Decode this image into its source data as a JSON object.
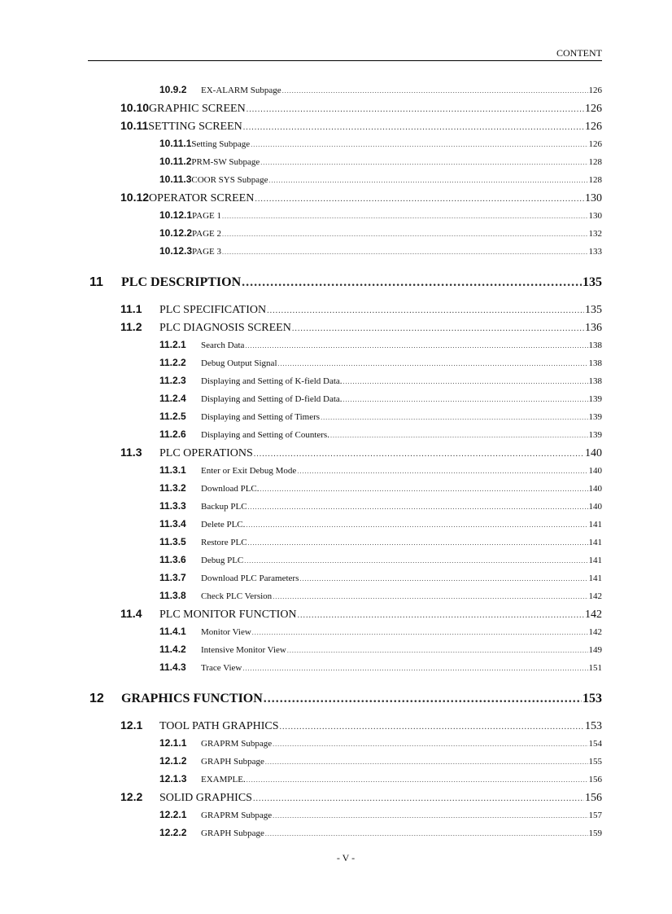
{
  "header": {
    "title": "CONTENT"
  },
  "footer": {
    "page_label": "- V -"
  },
  "entries": [
    {
      "level": 3,
      "number": "10.9.2",
      "title": "EX-ALARM Subpage",
      "page": "126"
    },
    {
      "level": 2,
      "number": "10.10",
      "title": "GRAPHIC SCREEN",
      "page": "126",
      "tight": true
    },
    {
      "level": 2,
      "number": "10.11",
      "title": "SETTING SCREEN",
      "page": "126",
      "tight": true
    },
    {
      "level": 3,
      "number": "10.11.1",
      "title": "Setting Subpage",
      "page": "126",
      "tight": true
    },
    {
      "level": 3,
      "number": "10.11.2",
      "title": "PRM-SW Subpage",
      "page": "128",
      "tight": true
    },
    {
      "level": 3,
      "number": "10.11.3",
      "title": "COOR SYS Subpage",
      "page": "128",
      "tight": true
    },
    {
      "level": 2,
      "number": "10.12",
      "title": "OPERATOR SCREEN",
      "page": "130",
      "tight": true
    },
    {
      "level": 3,
      "number": "10.12.1",
      "title": "PAGE 1",
      "page": "130",
      "tight": true
    },
    {
      "level": 3,
      "number": "10.12.2",
      "title": "PAGE 2",
      "page": "132",
      "tight": true
    },
    {
      "level": 3,
      "number": "10.12.3",
      "title": "PAGE 3",
      "page": "133",
      "tight": true
    },
    {
      "level": 1,
      "number": "11",
      "title": "PLC DESCRIPTION",
      "page": "135"
    },
    {
      "level": 2,
      "number": "11.1",
      "title": "PLC SPECIFICATION",
      "page": "135"
    },
    {
      "level": 2,
      "number": "11.2",
      "title": "PLC DIAGNOSIS SCREEN",
      "page": "136"
    },
    {
      "level": 3,
      "number": "11.2.1",
      "title": "Search Data",
      "page": "138"
    },
    {
      "level": 3,
      "number": "11.2.2",
      "title": "Debug Output Signal",
      "page": "138"
    },
    {
      "level": 3,
      "number": "11.2.3",
      "title": "Displaying and Setting of K-field Data.",
      "page": "138"
    },
    {
      "level": 3,
      "number": "11.2.4",
      "title": "Displaying and Setting of D-field Data.",
      "page": "139"
    },
    {
      "level": 3,
      "number": "11.2.5",
      "title": "Displaying and Setting of Timers",
      "page": "139"
    },
    {
      "level": 3,
      "number": "11.2.6",
      "title": "Displaying and Setting of Counters.",
      "page": "139"
    },
    {
      "level": 2,
      "number": "11.3",
      "title": "PLC OPERATIONS",
      "page": "140"
    },
    {
      "level": 3,
      "number": "11.3.1",
      "title": "Enter or Exit Debug Mode",
      "page": "140"
    },
    {
      "level": 3,
      "number": "11.3.2",
      "title": "Download PLC.",
      "page": "140"
    },
    {
      "level": 3,
      "number": "11.3.3",
      "title": "Backup PLC",
      "page": "140"
    },
    {
      "level": 3,
      "number": "11.3.4",
      "title": "Delete PLC.",
      "page": "141"
    },
    {
      "level": 3,
      "number": "11.3.5",
      "title": "Restore PLC",
      "page": "141"
    },
    {
      "level": 3,
      "number": "11.3.6",
      "title": "Debug PLC",
      "page": "141"
    },
    {
      "level": 3,
      "number": "11.3.7",
      "title": "Download PLC Parameters",
      "page": "141"
    },
    {
      "level": 3,
      "number": "11.3.8",
      "title": "Check PLC Version",
      "page": "142"
    },
    {
      "level": 2,
      "number": "11.4",
      "title": "PLC MONITOR FUNCTION",
      "page": "142"
    },
    {
      "level": 3,
      "number": "11.4.1",
      "title": "Monitor View",
      "page": "142"
    },
    {
      "level": 3,
      "number": "11.4.2",
      "title": "Intensive Monitor View",
      "page": "149"
    },
    {
      "level": 3,
      "number": "11.4.3",
      "title": "Trace View",
      "page": "151"
    },
    {
      "level": 1,
      "number": "12",
      "title": "GRAPHICS FUNCTION",
      "page": "153"
    },
    {
      "level": 2,
      "number": "12.1",
      "title": "TOOL PATH GRAPHICS",
      "page": "153"
    },
    {
      "level": 3,
      "number": "12.1.1",
      "title": "GRAPRM Subpage",
      "page": "154"
    },
    {
      "level": 3,
      "number": "12.1.2",
      "title": "GRAPH Subpage",
      "page": "155"
    },
    {
      "level": 3,
      "number": "12.1.3",
      "title": "EXAMPLE.",
      "page": "156"
    },
    {
      "level": 2,
      "number": "12.2",
      "title": "SOLID GRAPHICS",
      "page": "156"
    },
    {
      "level": 3,
      "number": "12.2.1",
      "title": "GRAPRM Subpage",
      "page": "157"
    },
    {
      "level": 3,
      "number": "12.2.2",
      "title": "GRAPH Subpage",
      "page": "159"
    }
  ]
}
